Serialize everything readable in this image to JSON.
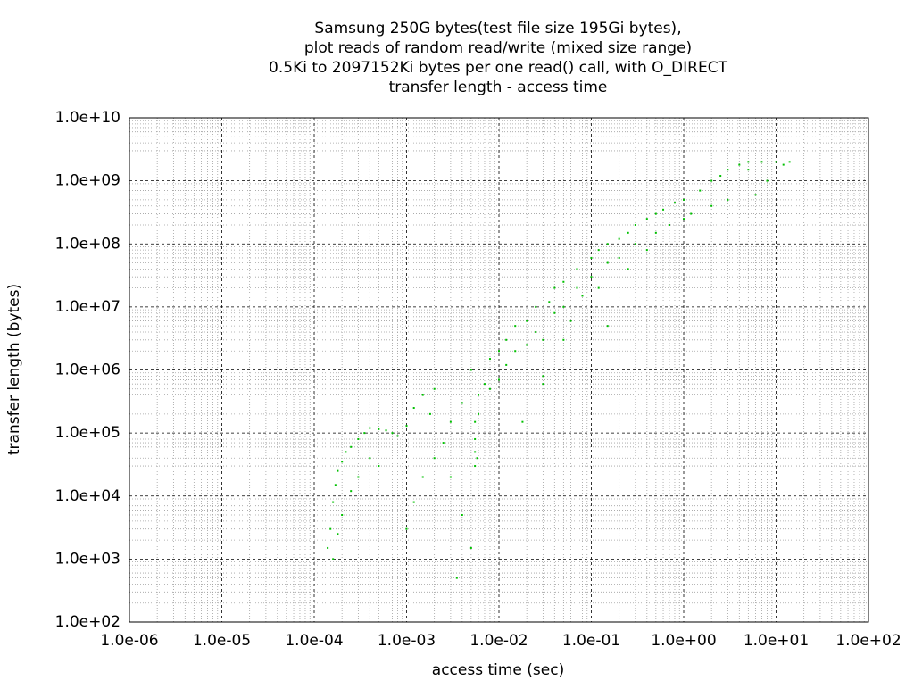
{
  "chart_data": {
    "type": "scatter",
    "title": [
      "Samsung 250G bytes(test file size 195Gi bytes),",
      "plot reads of random read/write (mixed size range)",
      "0.5Ki to 2097152Ki bytes per one read() call, with O_DIRECT",
      "transfer length - access time"
    ],
    "x_label": "access time (sec)",
    "y_label": "transfer length (bytes)",
    "log_x": true,
    "log_y": true,
    "grid": true,
    "minor_grid": true,
    "color": "#00c000",
    "xlim": [
      1e-06,
      100
    ],
    "ylim": [
      100,
      10000000000
    ],
    "xticks": [
      {
        "value": 1e-06,
        "label": "1.0e-06"
      },
      {
        "value": 1e-05,
        "label": "1.0e-05"
      },
      {
        "value": 0.0001,
        "label": "1.0e-04"
      },
      {
        "value": 0.001,
        "label": "1.0e-03"
      },
      {
        "value": 0.01,
        "label": "1.0e-02"
      },
      {
        "value": 0.1,
        "label": "1.0e-01"
      },
      {
        "value": 1,
        "label": "1.0e+00"
      },
      {
        "value": 10,
        "label": "1.0e+01"
      },
      {
        "value": 100,
        "label": "1.0e+02"
      }
    ],
    "yticks": [
      {
        "value": 100,
        "label": "1.0e+02"
      },
      {
        "value": 1000,
        "label": "1.0e+03"
      },
      {
        "value": 10000,
        "label": "1.0e+04"
      },
      {
        "value": 100000,
        "label": "1.0e+05"
      },
      {
        "value": 1000000,
        "label": "1.0e+06"
      },
      {
        "value": 10000000,
        "label": "1.0e+07"
      },
      {
        "value": 100000000,
        "label": "1.0e+08"
      },
      {
        "value": 1000000000,
        "label": "1.0e+09"
      },
      {
        "value": 10000000000,
        "label": "1.0e+10"
      }
    ],
    "x": [
      0.00014,
      0.00015,
      0.00016,
      0.00017,
      0.00018,
      0.0002,
      0.00022,
      0.00025,
      0.0003,
      0.00035,
      0.0004,
      0.0005,
      0.0006,
      0.0007,
      0.0008,
      0.001,
      0.0012,
      0.0015,
      0.0018,
      0.002,
      0.00016,
      0.00018,
      0.0002,
      0.00025,
      0.0003,
      0.0004,
      0.0005,
      0.001,
      0.0012,
      0.0015,
      0.002,
      0.0025,
      0.003,
      0.003,
      0.004,
      0.004,
      0.005,
      0.005,
      0.0055,
      0.0055,
      0.0055,
      0.0055,
      0.006,
      0.006,
      0.0058,
      0.007,
      0.008,
      0.008,
      0.01,
      0.01,
      0.012,
      0.012,
      0.015,
      0.015,
      0.02,
      0.02,
      0.025,
      0.025,
      0.03,
      0.03,
      0.035,
      0.04,
      0.04,
      0.05,
      0.05,
      0.06,
      0.07,
      0.07,
      0.08,
      0.1,
      0.1,
      0.12,
      0.12,
      0.15,
      0.15,
      0.2,
      0.2,
      0.25,
      0.25,
      0.3,
      0.3,
      0.4,
      0.4,
      0.5,
      0.5,
      0.6,
      0.7,
      0.8,
      1,
      1,
      1.2,
      1.5,
      2,
      2,
      2.5,
      3,
      3,
      4,
      5,
      5,
      6,
      7,
      8,
      10,
      12,
      14,
      0.0035,
      0.018,
      0.03,
      0.05,
      0.15
    ],
    "values": [
      1500,
      3000,
      8000,
      15000,
      25000,
      35000,
      50000,
      60000,
      80000,
      100000,
      120000,
      115000,
      110000,
      100000,
      90000,
      130000,
      250000,
      400000,
      200000,
      500000,
      1000,
      2500,
      5000,
      12000,
      20000,
      40000,
      30000,
      3000,
      8000,
      20000,
      40000,
      70000,
      20000,
      150000,
      5000,
      300000,
      1500,
      1000000,
      30000,
      50000,
      80000,
      150000,
      200000,
      400000,
      40000,
      600000,
      1500000,
      500000,
      2000000,
      700000,
      3000000,
      1200000,
      5000000,
      2000000,
      6000000,
      2500000,
      10000000,
      4000000,
      3000000,
      800000,
      12000000,
      20000000,
      8000000,
      25000000,
      10000000,
      6000000,
      40000000,
      20000000,
      15000000,
      60000000,
      30000000,
      80000000,
      20000000,
      100000000,
      50000000,
      120000000,
      60000000,
      150000000,
      40000000,
      200000000,
      100000000,
      250000000,
      80000000,
      300000000,
      150000000,
      350000000,
      200000000,
      450000000,
      500000000,
      250000000,
      300000000,
      700000000,
      1000000000,
      400000000,
      1200000000,
      1500000000,
      500000000,
      1800000000,
      2000000000,
      1500000000,
      600000000,
      2000000000,
      1000000000,
      2000000000,
      1800000000,
      2000000000,
      500,
      150000,
      600000,
      3000000,
      5000000
    ]
  }
}
